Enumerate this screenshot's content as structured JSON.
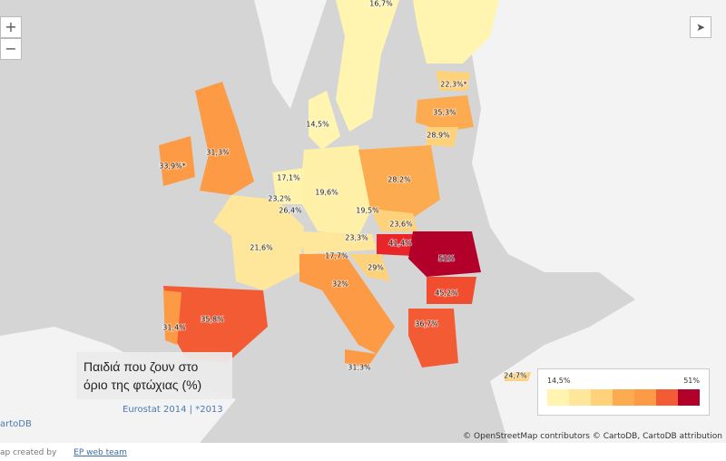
{
  "controls": {
    "zoom_in": "+",
    "zoom_out": "−"
  },
  "map": {
    "labels": [
      "16,7%",
      "22,3%*",
      "14,5%",
      "35,3%",
      "28,9%",
      "31,3%",
      "33,9%*",
      "17,1%",
      "19,6%",
      "28,2%",
      "23,2%",
      "26,4%",
      "19,5%",
      "23,6%",
      "21,6%",
      "23,3%",
      "41,4%",
      "51%",
      "17,7%",
      "29%",
      "32%",
      "45,2%",
      "35,8%",
      "31,4%",
      "36,7%",
      "31,3%",
      "24,7%"
    ]
  },
  "title": "Παιδιά που ζουν στο όριο της φτώχιας (%)",
  "source": "Eurostat 2014 | *2013",
  "legend": {
    "min": "14,5%",
    "max": "51%"
  },
  "attribution": "© OpenStreetMap contributors © CartoDB, CartoDB attribution",
  "cartodb": "artoDB",
  "footer": {
    "created_by": "ap created by",
    "author": "EP web team"
  }
}
